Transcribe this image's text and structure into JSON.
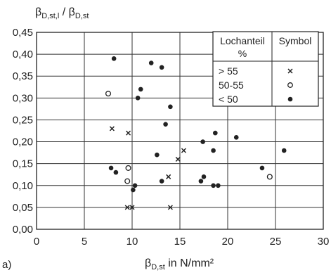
{
  "chart_data": {
    "type": "scatter",
    "panel_label": "a)",
    "ylabel": {
      "main": "β",
      "sub1": "D,st,l",
      "mid": " / β",
      "sub2": "D,st"
    },
    "xlabel": {
      "main": "β",
      "sub": "D,st",
      "rest": " in N/mm²"
    },
    "xlim": [
      0,
      30
    ],
    "ylim": [
      0,
      0.45
    ],
    "xticks": [
      0,
      5,
      10,
      15,
      20,
      25,
      30
    ],
    "xtick_labels": [
      "0",
      "5",
      "10",
      "15",
      "20",
      "25",
      "30"
    ],
    "yticks": [
      0,
      0.05,
      0.1,
      0.15,
      0.2,
      0.25,
      0.3,
      0.35,
      0.4,
      0.45
    ],
    "ytick_labels": [
      "0,00",
      "0,05",
      "0,10",
      "0,15",
      "0,20",
      "0,25",
      "0,30",
      "0,35",
      "0,40",
      "0,45"
    ],
    "grid": true,
    "legend": {
      "position": "top-right",
      "header_col1_line1": "Lochanteil",
      "header_col1_line2": "%",
      "header_col2": "Symbol",
      "rows": [
        {
          "label": "> 55",
          "symbol": "×"
        },
        {
          "label": "50-55",
          "symbol": "○"
        },
        {
          "label": "< 50",
          "symbol": "●"
        }
      ]
    },
    "series": [
      {
        "name": "> 55",
        "marker": "x",
        "points": [
          [
            7.9,
            0.23
          ],
          [
            9.6,
            0.22
          ],
          [
            9.5,
            0.05
          ],
          [
            10.0,
            0.05
          ],
          [
            13.8,
            0.12
          ],
          [
            14.0,
            0.05
          ],
          [
            14.8,
            0.16
          ],
          [
            15.4,
            0.18
          ]
        ]
      },
      {
        "name": "50-55",
        "marker": "open-circle",
        "points": [
          [
            7.5,
            0.31
          ],
          [
            9.5,
            0.11
          ],
          [
            9.6,
            0.14
          ],
          [
            24.4,
            0.12
          ]
        ]
      },
      {
        "name": "< 50",
        "marker": "filled-circle",
        "points": [
          [
            8.1,
            0.39
          ],
          [
            7.8,
            0.14
          ],
          [
            8.3,
            0.13
          ],
          [
            10.1,
            0.09
          ],
          [
            10.3,
            0.1
          ],
          [
            10.6,
            0.3
          ],
          [
            10.9,
            0.32
          ],
          [
            12.0,
            0.38
          ],
          [
            12.6,
            0.17
          ],
          [
            13.1,
            0.37
          ],
          [
            13.1,
            0.11
          ],
          [
            13.5,
            0.24
          ],
          [
            14.0,
            0.28
          ],
          [
            17.2,
            0.11
          ],
          [
            17.5,
            0.12
          ],
          [
            17.4,
            0.2
          ],
          [
            18.5,
            0.18
          ],
          [
            18.7,
            0.22
          ],
          [
            18.5,
            0.1
          ],
          [
            19.0,
            0.1
          ],
          [
            20.9,
            0.21
          ],
          [
            23.6,
            0.14
          ],
          [
            25.9,
            0.18
          ]
        ]
      }
    ]
  }
}
